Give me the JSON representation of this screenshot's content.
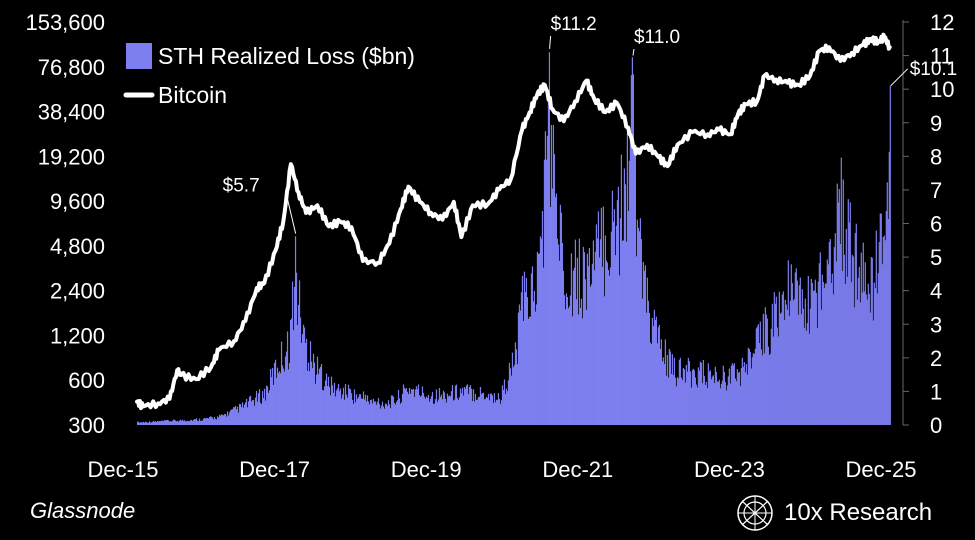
{
  "chart_data": {
    "type": "bar+line",
    "source": "Glassnode",
    "brand": "10x Research",
    "left_axis": {
      "scale": "log2",
      "ticks": [
        "153,600",
        "76,800",
        "38,400",
        "19,200",
        "9,600",
        "4,800",
        "2,400",
        "1,200",
        "600",
        "300"
      ],
      "tick_values": [
        153600,
        76800,
        38400,
        19200,
        9600,
        4800,
        2400,
        1200,
        600,
        300
      ]
    },
    "right_axis": {
      "ticks": [
        "12",
        "11",
        "10",
        "9",
        "8",
        "7",
        "6",
        "5",
        "4",
        "3",
        "2",
        "1",
        "0"
      ],
      "range": [
        0,
        12
      ]
    },
    "x_axis": {
      "ticks": [
        "Dec-15",
        "Dec-17",
        "Dec-19",
        "Dec-21",
        "Dec-23",
        "Dec-25"
      ],
      "tick_years": [
        2015.92,
        2017.92,
        2019.92,
        2021.92,
        2023.92,
        2025.92
      ],
      "range": [
        2015.92,
        2025.92
      ]
    },
    "legend": [
      {
        "name": "STH Realized Loss ($bn)",
        "color": "#7d7ef0",
        "kind": "bar"
      },
      {
        "name": "Bitcoin",
        "color": "#ffffff",
        "kind": "line"
      }
    ],
    "series": [
      {
        "name": "STH Realized Loss ($bn)",
        "axis": "right",
        "points": [
          [
            2015.92,
            0.1
          ],
          [
            2016.3,
            0.15
          ],
          [
            2016.7,
            0.2
          ],
          [
            2017.0,
            0.3
          ],
          [
            2017.3,
            0.7
          ],
          [
            2017.6,
            1.2
          ],
          [
            2017.8,
            2.5
          ],
          [
            2017.92,
            3.0
          ],
          [
            2018.0,
            5.7
          ],
          [
            2018.1,
            3.5
          ],
          [
            2018.2,
            2.5
          ],
          [
            2018.35,
            1.8
          ],
          [
            2018.5,
            1.4
          ],
          [
            2018.7,
            1.2
          ],
          [
            2018.9,
            1.0
          ],
          [
            2019.1,
            0.8
          ],
          [
            2019.3,
            0.9
          ],
          [
            2019.5,
            1.4
          ],
          [
            2019.7,
            1.2
          ],
          [
            2019.9,
            1.1
          ],
          [
            2020.2,
            1.3
          ],
          [
            2020.5,
            1.2
          ],
          [
            2020.7,
            1.0
          ],
          [
            2020.9,
            2.5
          ],
          [
            2021.0,
            4.5
          ],
          [
            2021.2,
            5.5
          ],
          [
            2021.35,
            11.2
          ],
          [
            2021.5,
            6.5
          ],
          [
            2021.7,
            5.5
          ],
          [
            2021.9,
            6.0
          ],
          [
            2022.1,
            7.0
          ],
          [
            2022.3,
            8.0
          ],
          [
            2022.45,
            11.0
          ],
          [
            2022.6,
            5.0
          ],
          [
            2022.8,
            3.0
          ],
          [
            2023.0,
            2.0
          ],
          [
            2023.3,
            2.0
          ],
          [
            2023.6,
            1.8
          ],
          [
            2023.9,
            2.0
          ],
          [
            2024.2,
            3.5
          ],
          [
            2024.5,
            5.0
          ],
          [
            2024.8,
            4.5
          ],
          [
            2025.0,
            6.0
          ],
          [
            2025.2,
            8.0
          ],
          [
            2025.4,
            6.0
          ],
          [
            2025.6,
            5.0
          ],
          [
            2025.75,
            7.0
          ],
          [
            2025.85,
            10.1
          ]
        ]
      },
      {
        "name": "Bitcoin",
        "axis": "left",
        "points": [
          [
            2015.92,
            430
          ],
          [
            2016.0,
            400
          ],
          [
            2016.2,
            420
          ],
          [
            2016.35,
            450
          ],
          [
            2016.45,
            700
          ],
          [
            2016.5,
            650
          ],
          [
            2016.7,
            610
          ],
          [
            2016.9,
            740
          ],
          [
            2017.0,
            960
          ],
          [
            2017.2,
            1100
          ],
          [
            2017.35,
            1500
          ],
          [
            2017.5,
            2500
          ],
          [
            2017.6,
            2700
          ],
          [
            2017.75,
            4500
          ],
          [
            2017.85,
            7000
          ],
          [
            2017.95,
            17000
          ],
          [
            2018.05,
            11000
          ],
          [
            2018.15,
            8000
          ],
          [
            2018.3,
            9000
          ],
          [
            2018.45,
            6500
          ],
          [
            2018.6,
            7000
          ],
          [
            2018.75,
            6400
          ],
          [
            2018.9,
            3800
          ],
          [
            2019.1,
            3700
          ],
          [
            2019.25,
            5000
          ],
          [
            2019.4,
            8500
          ],
          [
            2019.5,
            12000
          ],
          [
            2019.65,
            9500
          ],
          [
            2019.8,
            8000
          ],
          [
            2019.95,
            7200
          ],
          [
            2020.1,
            9500
          ],
          [
            2020.2,
            5500
          ],
          [
            2020.35,
            9000
          ],
          [
            2020.55,
            9200
          ],
          [
            2020.7,
            11500
          ],
          [
            2020.85,
            13500
          ],
          [
            2021.0,
            29000
          ],
          [
            2021.1,
            38000
          ],
          [
            2021.2,
            50000
          ],
          [
            2021.3,
            58000
          ],
          [
            2021.4,
            40000
          ],
          [
            2021.55,
            33000
          ],
          [
            2021.7,
            45000
          ],
          [
            2021.85,
            62000
          ],
          [
            2021.95,
            47000
          ],
          [
            2022.1,
            38000
          ],
          [
            2022.25,
            44000
          ],
          [
            2022.4,
            30000
          ],
          [
            2022.5,
            20000
          ],
          [
            2022.65,
            23000
          ],
          [
            2022.8,
            19000
          ],
          [
            2022.92,
            16500
          ],
          [
            2023.05,
            23000
          ],
          [
            2023.25,
            28000
          ],
          [
            2023.45,
            27000
          ],
          [
            2023.6,
            29000
          ],
          [
            2023.75,
            27000
          ],
          [
            2023.85,
            37000
          ],
          [
            2023.95,
            43000
          ],
          [
            2024.1,
            45000
          ],
          [
            2024.2,
            67000
          ],
          [
            2024.35,
            63000
          ],
          [
            2024.5,
            60000
          ],
          [
            2024.65,
            58000
          ],
          [
            2024.8,
            67000
          ],
          [
            2024.92,
            98000
          ],
          [
            2025.05,
            104000
          ],
          [
            2025.2,
            84000
          ],
          [
            2025.35,
            95000
          ],
          [
            2025.5,
            108000
          ],
          [
            2025.6,
            118000
          ],
          [
            2025.7,
            113000
          ],
          [
            2025.78,
            122000
          ],
          [
            2025.85,
            104000
          ]
        ]
      }
    ],
    "annotations": [
      {
        "label": "$5.7",
        "x": 2018.0,
        "value": 5.7
      },
      {
        "label": "$11.2",
        "x": 2021.35,
        "value": 11.2
      },
      {
        "label": "$11.0",
        "x": 2022.45,
        "value": 11.0
      },
      {
        "label": "$10.1",
        "x": 2025.85,
        "value": 10.1
      }
    ]
  }
}
